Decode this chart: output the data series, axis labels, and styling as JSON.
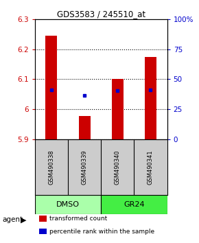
{
  "title": "GDS3583 / 245510_at",
  "samples": [
    "GSM490338",
    "GSM490339",
    "GSM490340",
    "GSM490341"
  ],
  "bar_color": "#CC0000",
  "dot_color": "#0000CC",
  "ylim_left": [
    5.9,
    6.3
  ],
  "ylim_right": [
    0,
    100
  ],
  "yticks_left": [
    5.9,
    6.0,
    6.1,
    6.2,
    6.3
  ],
  "ytick_labels_left": [
    "5.9",
    "6",
    "6.1",
    "6.2",
    "6.3"
  ],
  "yticks_right": [
    0,
    25,
    50,
    75,
    100
  ],
  "ytick_labels_right": [
    "0",
    "25",
    "50",
    "75",
    "100%"
  ],
  "bar_tops": [
    6.245,
    5.976,
    6.1,
    6.175
  ],
  "bar_bottom": 5.9,
  "dot_values": [
    6.065,
    6.045,
    6.063,
    6.065
  ],
  "bar_width": 0.35,
  "legend_labels": [
    "transformed count",
    "percentile rank within the sample"
  ],
  "legend_colors": [
    "#CC0000",
    "#0000CC"
  ],
  "left_ylabel_color": "#CC0000",
  "right_ylabel_color": "#0000CC",
  "background_color": "#ffffff",
  "sample_box_color": "#cccccc",
  "dmso_color": "#aaffaa",
  "gr24_color": "#44ee44"
}
